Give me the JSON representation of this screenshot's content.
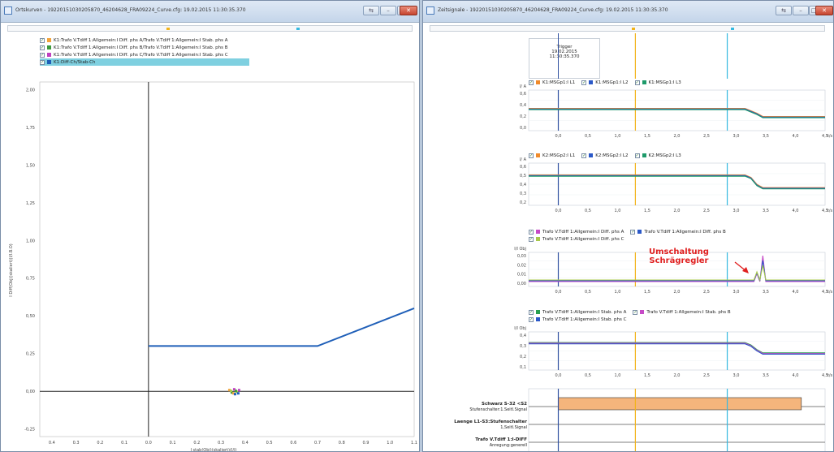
{
  "left_window": {
    "title": "Ortskurven - 19220151030205870_46204628_FRA09224_Curve.cfg: 19.02.2015 11:30:35.370",
    "legend": [
      {
        "label": "K1:Trafo V.Tdiff 1:Allgemein:I Diff. phs A/Trafo V.Tdiff 1:Allgemein:I Stab. phs A",
        "color": "#f2a33a",
        "checked": true
      },
      {
        "label": "K1:Trafo V.Tdiff 1:Allgemein:I Diff. phs B/Trafo V.Tdiff 1:Allgemein:I Stab. phs B",
        "color": "#3b9a3b",
        "checked": true
      },
      {
        "label": "K1:Trafo V.Tdiff 1:Allgemein:I Diff. phs C/Trafo V.Tdiff 1:Allgemein:I Stab. phs C",
        "color": "#c040c0",
        "checked": true
      },
      {
        "label": "K1:Diff-Ch/Stab-Ch",
        "color": "#1f5fb8",
        "checked": true,
        "selected": true
      }
    ],
    "y_axis_label": "I Diff(Obj)(skaliert)(I/I.B.O)",
    "x_axis_label": "I stab(Obj)(skaliert)(I/I)",
    "chart_data": {
      "type": "line",
      "xlim": [
        -0.45,
        1.1
      ],
      "ylim": [
        -0.3,
        2.05
      ],
      "x_ticks": [
        "0.4",
        "0.3",
        "0.2",
        "0.1",
        "0.0",
        "0.1",
        "0.2",
        "0.3",
        "0.4",
        "0.5",
        "0.6",
        "0.7",
        "0.8",
        "0.9",
        "1.0",
        "1.1"
      ],
      "y_ticks": [
        "2,00",
        "1,75",
        "1,50",
        "1,25",
        "1,00",
        "0,75",
        "0,50",
        "0,25",
        "0,00",
        "-0,25"
      ],
      "series": [
        {
          "name": "K1:Diff-Ch/Stab-Ch",
          "x": [
            0.0,
            0.7,
            1.1
          ],
          "y": [
            0.3,
            0.3,
            0.55
          ],
          "color": "#1f5fb8"
        }
      ],
      "cluster_x": 0.35,
      "cluster_y": 0.0,
      "grid": false
    }
  },
  "right_window": {
    "title": "Zeitsignale - 19220151030205870_46204628_FRA09224_Curve.cfg: 19.02.2015 11:30:35.370",
    "trigger": {
      "label": "Trigger",
      "date": "19.02.2015",
      "time": "11:30:35.370"
    },
    "time_ticks": [
      "0,0",
      "0,5",
      "1,0",
      "1,5",
      "2,0",
      "2,5",
      "3,0",
      "3,5",
      "4,0",
      "4,5"
    ],
    "time_unit": "t/s",
    "panels": [
      {
        "legend": [
          {
            "label": "K1:MSGp1:I L1",
            "color": "#f08a2a"
          },
          {
            "label": "K1:MSGp1:I L2",
            "color": "#2a58c8"
          },
          {
            "label": "K1:MSGp1:I L3",
            "color": "#1e9a6a"
          }
        ],
        "ylabel": "I/ A",
        "yticks": [
          "0,6",
          "0,4",
          "0,2",
          "0,0"
        ]
      },
      {
        "legend": [
          {
            "label": "K2:MSGp2:I L1",
            "color": "#f08a2a"
          },
          {
            "label": "K2:MSGp2:I L2",
            "color": "#2a58c8"
          },
          {
            "label": "K2:MSGp2:I L3",
            "color": "#1e9a6a"
          }
        ],
        "ylabel": "I/ A",
        "yticks": [
          "0,6",
          "0,5",
          "0,4",
          "0,3",
          "0,2"
        ]
      },
      {
        "legend": [
          {
            "label": "Trafo V.Tdiff 1:Allgemein:I Diff. phs A",
            "color": "#c64ac6"
          },
          {
            "label": "Trafo V.Tdiff 1:Allgemein:I Diff. phs B",
            "color": "#2a58c8"
          },
          {
            "label": "Trafo V.Tdiff 1:Allgemein:I Diff. phs C",
            "color": "#a8c84a"
          }
        ],
        "ylabel": "I/I Obj",
        "yticks": [
          "0,03",
          "0,02",
          "0,01",
          "0,00"
        ]
      },
      {
        "legend": [
          {
            "label": "Trafo V.Tdiff 1:Allgemein:I Stab. phs A",
            "color": "#28a050"
          },
          {
            "label": "Trafo V.Tdiff 1:Allgemein:I Stab. phs B",
            "color": "#c64ac6"
          },
          {
            "label": "Trafo V.Tdiff 1:Allgemein:I Stab. phs C",
            "color": "#2a58c8"
          }
        ],
        "ylabel": "I/I Obj",
        "yticks": [
          "0,4",
          "0,3",
          "0,2",
          "0,1"
        ]
      }
    ],
    "annotation": {
      "line1": "Umschaltung",
      "line2": "Schrägregler"
    },
    "binary_rows": [
      {
        "name": "Schwarz S-32 <S2",
        "sub": "Stufenschalter:1.Seitl.Signal"
      },
      {
        "name": "Laenge L1-S3:Stufenschalter",
        "sub": "1,Seitl.Signal"
      },
      {
        "name": "Trafo V.Tdiff 1:I-DIFF",
        "sub": "Anregung:generell"
      }
    ],
    "colors": {
      "cursor_orange": "#f2b31a",
      "cursor_cyan": "#35b9e0",
      "cursor_blue": "#3050a0",
      "bar_fill": "#f5b57c"
    }
  },
  "window_buttons": {
    "minimize": "–",
    "maximize": "□",
    "close": "✕"
  }
}
